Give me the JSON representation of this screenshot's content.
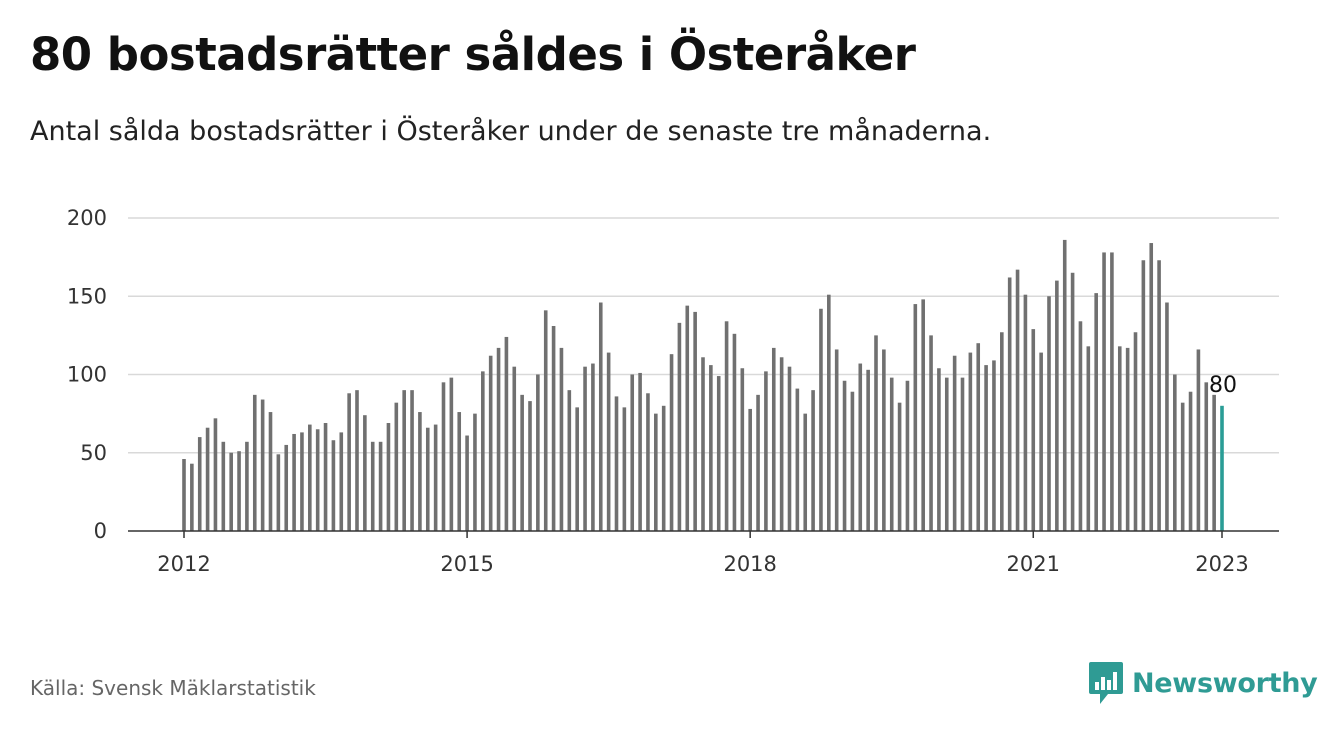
{
  "title": "80 bostadsrätter såldes i Österåker",
  "subtitle": "Antal sålda bostadsrätter i Österåker under de senaste tre månaderna.",
  "source": "Källa: Svensk Mäklarstatistik",
  "brand": {
    "name": "Newsworthy",
    "color": "#2f9b94"
  },
  "colors": {
    "bar": "#707070",
    "highlight": "#2a9d96",
    "grid": "#d9d9d9",
    "axis": "#333333"
  },
  "chart_data": {
    "type": "bar",
    "title": "",
    "xlabel": "",
    "ylabel": "",
    "ylim": [
      0,
      200
    ],
    "yticks": [
      0,
      50,
      100,
      150,
      200
    ],
    "xticks": [
      {
        "label": "2012",
        "index": 0
      },
      {
        "label": "2015",
        "index": 36
      },
      {
        "label": "2018",
        "index": 72
      },
      {
        "label": "2021",
        "index": 108
      },
      {
        "label": "2023",
        "index": 132
      }
    ],
    "grid": true,
    "frequency": "monthly",
    "start": "2012-01",
    "end": "2023-01",
    "highlight_last": true,
    "last_value_label": "80",
    "values": [
      46,
      43,
      60,
      66,
      72,
      57,
      50,
      51,
      57,
      87,
      84,
      76,
      49,
      55,
      62,
      63,
      68,
      65,
      69,
      58,
      63,
      88,
      90,
      74,
      57,
      57,
      69,
      82,
      90,
      90,
      76,
      66,
      68,
      95,
      98,
      76,
      61,
      75,
      102,
      112,
      117,
      124,
      105,
      87,
      83,
      100,
      141,
      131,
      117,
      90,
      79,
      105,
      107,
      146,
      114,
      86,
      79,
      100,
      101,
      88,
      75,
      80,
      113,
      133,
      144,
      140,
      111,
      106,
      99,
      134,
      126,
      104,
      78,
      87,
      102,
      117,
      111,
      105,
      91,
      75,
      90,
      142,
      151,
      116,
      96,
      89,
      107,
      103,
      125,
      116,
      98,
      82,
      96,
      145,
      148,
      125,
      104,
      98,
      112,
      98,
      114,
      120,
      106,
      109,
      127,
      162,
      167,
      151,
      129,
      114,
      150,
      160,
      186,
      165,
      134,
      118,
      152,
      178,
      178,
      118,
      117,
      127,
      173,
      184,
      173,
      146,
      100,
      82,
      89,
      116,
      95,
      87,
      80
    ]
  }
}
